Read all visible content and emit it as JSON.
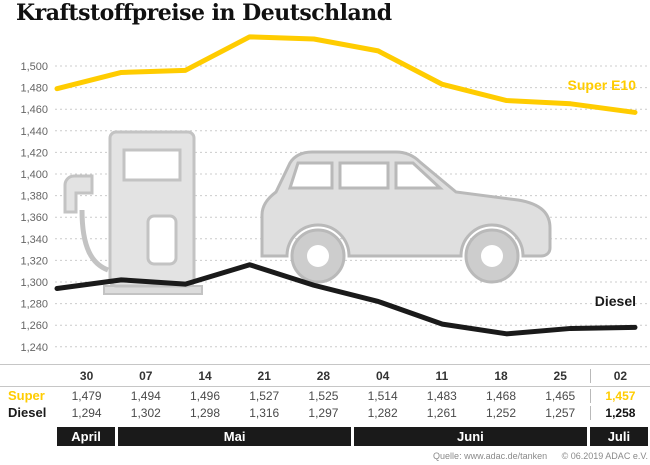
{
  "title": "Kraftstoffpreise in Deutschland",
  "legend": {
    "super": "Super E10",
    "diesel": "Diesel"
  },
  "table": {
    "super_label": "Super",
    "diesel_label": "Diesel"
  },
  "months": [
    {
      "label": "April",
      "span": 1
    },
    {
      "label": "Mai",
      "span": 4
    },
    {
      "label": "Juni",
      "span": 4
    },
    {
      "label": "Juli",
      "span": 1
    }
  ],
  "footer": {
    "source": "Quelle: www.adac.de/tanken",
    "copyright": "© 06.2019 ADAC e.V."
  },
  "colors": {
    "super": "#FFCC00",
    "diesel": "#1A1A1A",
    "grid": "#CCCCCC",
    "axis_text": "#666666",
    "month_bar": "#1A1A1A"
  },
  "chart_data": {
    "type": "line",
    "title": "Kraftstoffpreise in Deutschland",
    "x": [
      "30",
      "07",
      "14",
      "21",
      "28",
      "04",
      "11",
      "18",
      "25",
      "02"
    ],
    "x_months": [
      "April",
      "Mai",
      "Mai",
      "Mai",
      "Mai",
      "Juni",
      "Juni",
      "Juni",
      "Juni",
      "Juli"
    ],
    "series": [
      {
        "name": "Super E10",
        "color": "#FFCC00",
        "values": [
          1479,
          1494,
          1496,
          1527,
          1525,
          1514,
          1483,
          1468,
          1465,
          1457
        ]
      },
      {
        "name": "Diesel",
        "color": "#1A1A1A",
        "values": [
          1294,
          1302,
          1298,
          1316,
          1297,
          1282,
          1261,
          1252,
          1257,
          1258
        ]
      }
    ],
    "ylim": [
      1240,
      1500
    ],
    "ytick_step": 20,
    "ytick_labels": [
      "1,500",
      "1,480",
      "1,460",
      "1,440",
      "1,420",
      "1,400",
      "1,380",
      "1,360",
      "1,340",
      "1,320",
      "1,300",
      "1,280",
      "1,260",
      "1,240"
    ],
    "grid": "horizontal-dashed",
    "legend_position": "inline-right",
    "xlabel": "",
    "ylabel": ""
  }
}
